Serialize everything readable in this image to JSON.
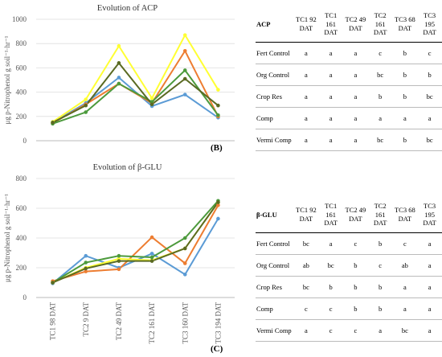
{
  "chart_data": [
    {
      "type": "line",
      "title": "Evolution of ACP",
      "ylabel": "μg p-Nitrophenol g soil⁻¹·hr⁻¹",
      "categories": [
        null,
        null,
        null,
        null,
        null,
        null
      ],
      "series": [
        {
          "color": "#5b9bd5",
          "values": [
            150,
            310,
            520,
            285,
            380,
            190
          ]
        },
        {
          "color": "#ed7d31",
          "values": [
            145,
            300,
            470,
            310,
            740,
            200
          ]
        },
        {
          "color": "#ffff33",
          "values": [
            155,
            340,
            780,
            350,
            870,
            420
          ]
        },
        {
          "color": "#4c9a3c",
          "values": [
            140,
            235,
            470,
            320,
            580,
            210
          ]
        },
        {
          "color": "#5a6a22",
          "values": [
            150,
            290,
            640,
            300,
            510,
            290
          ]
        }
      ],
      "ylim": [
        0,
        1000
      ],
      "yticks": [
        0,
        200,
        400,
        600,
        800,
        1000
      ],
      "panel_label": "(B)"
    },
    {
      "type": "line",
      "title": "Evolution of β-GLU",
      "ylabel": "μg p-Nitrophenol g soil⁻¹·hr⁻¹",
      "categories": [
        "TC1 98 DAT",
        "TC2 9 DAT",
        "TC2 49 DAT",
        "TC2 161 DAT",
        "TC3 160 DAT",
        "TC3 194 DAT"
      ],
      "series": [
        {
          "color": "#5b9bd5",
          "values": [
            95,
            280,
            200,
            295,
            155,
            530
          ]
        },
        {
          "color": "#ed7d31",
          "values": [
            110,
            175,
            190,
            405,
            230,
            620
          ]
        },
        {
          "color": "#ffff33",
          "values": [
            100,
            200,
            260,
            250,
            330,
            640
          ]
        },
        {
          "color": "#4c9a3c",
          "values": [
            100,
            235,
            280,
            270,
            400,
            650
          ]
        },
        {
          "color": "#5a6a22",
          "values": [
            100,
            195,
            245,
            245,
            330,
            640
          ]
        }
      ],
      "ylim": [
        0,
        800
      ],
      "yticks": [
        0,
        200,
        400,
        600,
        800
      ],
      "panel_label": "(C)"
    }
  ],
  "tables": [
    {
      "header": [
        "ACP",
        "TC1 92 DAT",
        "TC1 161 DAT",
        "TC2 49 DAT",
        "TC2 161 DAT",
        "TC3 68 DAT",
        "TC3 195 DAT"
      ],
      "rows": [
        [
          "Fert Control",
          "a",
          "a",
          "a",
          "c",
          "b",
          "c"
        ],
        [
          "Org Control",
          "a",
          "a",
          "a",
          "bc",
          "b",
          "b"
        ],
        [
          "Crop Res",
          "a",
          "a",
          "a",
          "b",
          "b",
          "bc"
        ],
        [
          "Comp",
          "a",
          "a",
          "a",
          "a",
          "a",
          "a"
        ],
        [
          "Vermi Comp",
          "a",
          "a",
          "a",
          "bc",
          "b",
          "bc"
        ]
      ]
    },
    {
      "header": [
        "β-GLU",
        "TC1 92 DAT",
        "TC1 161 DAT",
        "TC2 49 DAT",
        "TC2 161 DAT",
        "TC3 68 DAT",
        "TC3 195 DAT"
      ],
      "rows": [
        [
          "Fert Control",
          "bc",
          "a",
          "c",
          "b",
          "c",
          "a"
        ],
        [
          "Org Control",
          "ab",
          "bc",
          "b",
          "c",
          "ab",
          "a"
        ],
        [
          "Crop Res",
          "bc",
          "b",
          "b",
          "b",
          "a",
          "a"
        ],
        [
          "Comp",
          "c",
          "c",
          "b",
          "b",
          "a",
          "a"
        ],
        [
          "Vermi Comp",
          "a",
          "c",
          "c",
          "a",
          "bc",
          "a"
        ]
      ]
    }
  ]
}
